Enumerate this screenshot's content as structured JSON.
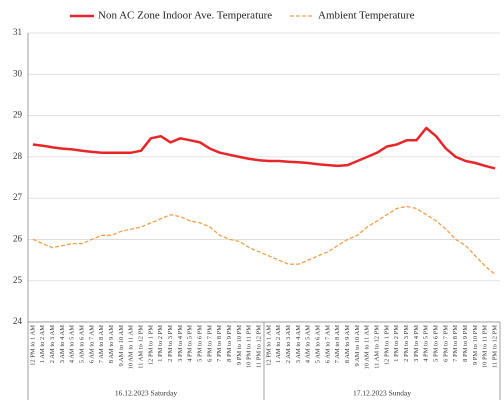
{
  "chart_data": {
    "type": "line",
    "categories": [
      "12 PM to 1 AM",
      "1 AM to 2 AM",
      "2 AM to 3 AM",
      "3 AM to 4 AM",
      "4 AM to 5 AM",
      "5 AM to 6 AM",
      "6 AM to 7 AM",
      "7 AM to 8 AM",
      "8 AM to 9 AM",
      "9 AM to 10 AM",
      "10 AM to 11 AM",
      "11 AM to 12 PM",
      "12 PM to 1 PM",
      "1 PM to 2 PM",
      "2 PM to 3 PM",
      "3 PM to 4 PM",
      "4 PM to 5 PM",
      "5 PM to 6 PM",
      "6 PM to 7 PM",
      "7 PM to 8 PM",
      "8 PM to 9 PM",
      "9 PM to 10 PM",
      "10 PM to 11 PM",
      "11 PM to 12 PM",
      "12 PM to 1 AM",
      "1 AM to 2 AM",
      "2 AM to 3 AM",
      "3 AM to 4 AM",
      "4 AM to 5 AM",
      "5 AM to 6 AM",
      "6 AM to 7 AM",
      "7 AM to 8 AM",
      "8 AM to 9 AM",
      "9 AM to 10 AM",
      "10 AM to 11 AM",
      "11 AM to 12 PM",
      "12 PM to 1 PM",
      "1 PM to 2 PM",
      "2 PM to 3 PM",
      "3 PM to 4 PM",
      "4 PM to 5 PM",
      "5 PM to 6 PM",
      "6 PM to 7 PM",
      "7 PM to 8 PM",
      "8 PM to 9 PM",
      "9 PM to 10 PM",
      "10 PM to 11 PM",
      "11 PM to 12 PM"
    ],
    "groups": [
      "16.12.2023 Saturday",
      "17.12.2023 Sunday"
    ],
    "series": [
      {
        "name": "Non AC Zone Indoor Ave. Temperature",
        "color": "#e8262a",
        "style": "solid",
        "values": [
          28.3,
          28.27,
          28.23,
          28.2,
          28.18,
          28.15,
          28.12,
          28.1,
          28.1,
          28.1,
          28.1,
          28.15,
          28.45,
          28.5,
          28.35,
          28.45,
          28.4,
          28.35,
          28.2,
          28.1,
          28.05,
          28.0,
          27.95,
          27.92,
          27.9,
          27.9,
          27.88,
          27.87,
          27.85,
          27.82,
          27.8,
          27.78,
          27.8,
          27.9,
          28.0,
          28.1,
          28.25,
          28.3,
          28.4,
          28.4,
          28.7,
          28.5,
          28.2,
          28.0,
          27.9,
          27.85,
          27.78,
          27.72
        ]
      },
      {
        "name": "Ambient Temperature",
        "color": "#f0a04b",
        "style": "dashed",
        "values": [
          26.0,
          25.9,
          25.8,
          25.85,
          25.9,
          25.9,
          26.0,
          26.1,
          26.1,
          26.2,
          26.25,
          26.3,
          26.4,
          26.5,
          26.6,
          26.55,
          26.45,
          26.4,
          26.3,
          26.1,
          26.0,
          25.95,
          25.8,
          25.7,
          25.6,
          25.5,
          25.4,
          25.4,
          25.5,
          25.6,
          25.7,
          25.85,
          26.0,
          26.1,
          26.3,
          26.45,
          26.6,
          26.75,
          26.8,
          26.75,
          26.6,
          26.45,
          26.25,
          26.0,
          25.85,
          25.6,
          25.35,
          25.15
        ]
      }
    ],
    "ylim": [
      24,
      31
    ],
    "yticks": [
      24,
      25,
      26,
      27,
      28,
      29,
      30,
      31
    ],
    "grid": true,
    "legend": "top"
  }
}
